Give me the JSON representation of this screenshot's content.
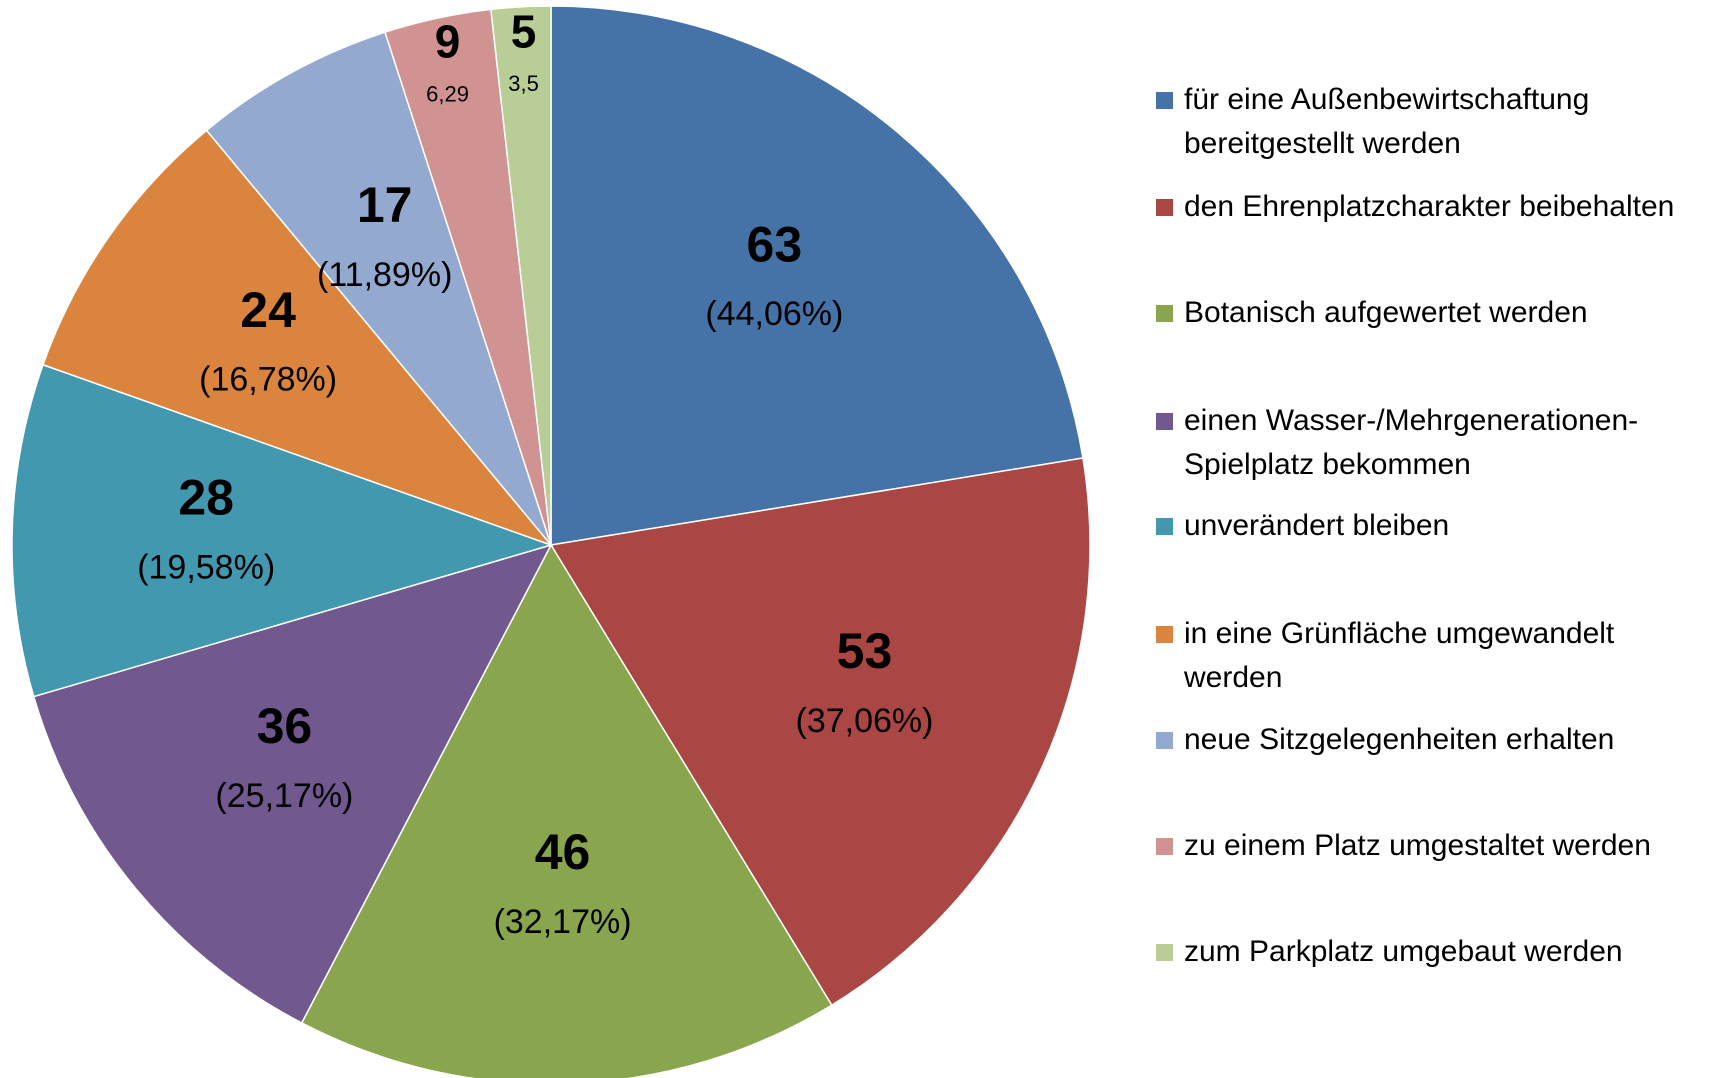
{
  "chart_data": {
    "type": "pie",
    "categories": [
      "für eine Außenbewirtschaftung bereitgestellt werden",
      "den Ehrenplatzcharakter beibehalten",
      "Botanisch aufgewertet werden",
      "einen Wasser-/Mehrgenerationen-Spielplatz bekommen",
      "unverändert bleiben",
      "in eine Grünfläche umgewandelt werden",
      "neue Sitzgelegenheiten erhalten",
      "zu einem Platz umgestaltet werden",
      "zum Parkplatz umgebaut werden"
    ],
    "values": [
      63,
      53,
      46,
      36,
      28,
      24,
      17,
      9,
      5
    ],
    "percent_labels": [
      "(44,06%)",
      "(37,06%)",
      "(32,17%)",
      "(25,17%)",
      "(19,58%)",
      "(16,78%)",
      "(11,89%)",
      "6,29",
      "3,5"
    ],
    "colors": [
      "#4572a7",
      "#aa4643",
      "#89a54e",
      "#71588f",
      "#4198af",
      "#db843d",
      "#93a9cf",
      "#d19392",
      "#b9cd96"
    ],
    "legend": "right"
  }
}
